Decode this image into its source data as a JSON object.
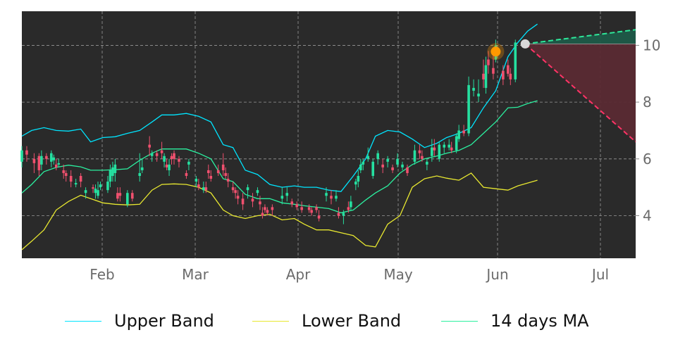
{
  "chart_data": {
    "type": "candlestick",
    "x_ticks": [
      "Feb",
      "Mar",
      "Apr",
      "May",
      "Jun",
      "Jul"
    ],
    "y_ticks": [
      4,
      6,
      8,
      10
    ],
    "ylim": [
      2.5,
      11.2
    ],
    "grid": true,
    "legend_position": "bottom",
    "background": "#2a2a2a",
    "colors": {
      "up": "#25e0a0",
      "down": "#f0506e",
      "upper_band": "#00e5ff",
      "lower_band": "#e8e830",
      "ma": "#2bf0a0",
      "marker": "#ff9900",
      "marker_last": "#d8d8d8",
      "forecast_up": "#2ee89a",
      "forecast_down": "#ff3366"
    },
    "series": [
      {
        "name": "Upper Band",
        "points": [
          [
            0,
            6.8
          ],
          [
            4,
            7.0
          ],
          [
            9,
            7.1
          ],
          [
            14,
            7.0
          ],
          [
            19,
            6.98
          ],
          [
            24,
            7.05
          ],
          [
            28,
            6.6
          ],
          [
            33,
            6.75
          ],
          [
            38,
            6.78
          ],
          [
            43,
            6.9
          ],
          [
            48,
            7.0
          ],
          [
            53,
            7.3
          ],
          [
            57,
            7.55
          ],
          [
            62,
            7.55
          ],
          [
            67,
            7.6
          ],
          [
            72,
            7.5
          ],
          [
            77,
            7.3
          ],
          [
            82,
            6.5
          ],
          [
            86,
            6.4
          ],
          [
            91,
            5.6
          ],
          [
            96,
            5.45
          ],
          [
            101,
            5.1
          ],
          [
            106,
            5.0
          ],
          [
            111,
            5.05
          ],
          [
            115,
            5.0
          ],
          [
            120,
            5.0
          ],
          [
            125,
            4.9
          ],
          [
            130,
            4.85
          ],
          [
            135,
            5.4
          ],
          [
            140,
            6.0
          ],
          [
            144,
            6.8
          ],
          [
            149,
            7.0
          ],
          [
            154,
            6.95
          ],
          [
            159,
            6.7
          ],
          [
            164,
            6.4
          ],
          [
            169,
            6.55
          ],
          [
            173,
            6.75
          ],
          [
            178,
            6.9
          ],
          [
            183,
            7.1
          ],
          [
            188,
            7.8
          ],
          [
            193,
            8.4
          ],
          [
            198,
            9.6
          ],
          [
            202,
            10.1
          ],
          [
            206,
            10.5
          ],
          [
            210,
            10.75
          ]
        ]
      },
      {
        "name": "Lower Band",
        "points": [
          [
            0,
            2.8
          ],
          [
            4,
            3.1
          ],
          [
            9,
            3.5
          ],
          [
            14,
            4.2
          ],
          [
            19,
            4.5
          ],
          [
            24,
            4.72
          ],
          [
            28,
            4.6
          ],
          [
            33,
            4.45
          ],
          [
            38,
            4.4
          ],
          [
            43,
            4.38
          ],
          [
            48,
            4.4
          ],
          [
            53,
            4.9
          ],
          [
            57,
            5.1
          ],
          [
            62,
            5.12
          ],
          [
            67,
            5.1
          ],
          [
            72,
            5.0
          ],
          [
            77,
            4.8
          ],
          [
            82,
            4.2
          ],
          [
            86,
            4.0
          ],
          [
            91,
            3.9
          ],
          [
            96,
            4.0
          ],
          [
            101,
            4.05
          ],
          [
            106,
            3.85
          ],
          [
            111,
            3.9
          ],
          [
            115,
            3.7
          ],
          [
            120,
            3.5
          ],
          [
            125,
            3.5
          ],
          [
            130,
            3.4
          ],
          [
            135,
            3.3
          ],
          [
            140,
            2.95
          ],
          [
            144,
            2.9
          ],
          [
            149,
            3.7
          ],
          [
            154,
            4.0
          ],
          [
            159,
            5.0
          ],
          [
            164,
            5.3
          ],
          [
            169,
            5.4
          ],
          [
            173,
            5.32
          ],
          [
            178,
            5.25
          ],
          [
            183,
            5.5
          ],
          [
            188,
            5.0
          ],
          [
            193,
            4.95
          ],
          [
            198,
            4.9
          ],
          [
            202,
            5.05
          ],
          [
            206,
            5.15
          ],
          [
            210,
            5.25
          ]
        ]
      },
      {
        "name": "14 days MA",
        "points": [
          [
            0,
            4.8
          ],
          [
            4,
            5.1
          ],
          [
            9,
            5.55
          ],
          [
            14,
            5.7
          ],
          [
            19,
            5.78
          ],
          [
            24,
            5.72
          ],
          [
            28,
            5.6
          ],
          [
            33,
            5.6
          ],
          [
            38,
            5.62
          ],
          [
            43,
            5.65
          ],
          [
            48,
            5.95
          ],
          [
            53,
            6.2
          ],
          [
            57,
            6.35
          ],
          [
            62,
            6.35
          ],
          [
            67,
            6.35
          ],
          [
            72,
            6.2
          ],
          [
            77,
            6.0
          ],
          [
            82,
            5.3
          ],
          [
            86,
            5.2
          ],
          [
            91,
            4.75
          ],
          [
            96,
            4.6
          ],
          [
            101,
            4.6
          ],
          [
            106,
            4.45
          ],
          [
            111,
            4.4
          ],
          [
            115,
            4.35
          ],
          [
            120,
            4.3
          ],
          [
            125,
            4.25
          ],
          [
            130,
            4.1
          ],
          [
            135,
            4.2
          ],
          [
            140,
            4.55
          ],
          [
            144,
            4.8
          ],
          [
            149,
            5.05
          ],
          [
            154,
            5.5
          ],
          [
            159,
            5.8
          ],
          [
            164,
            6.0
          ],
          [
            169,
            6.1
          ],
          [
            173,
            6.2
          ],
          [
            178,
            6.3
          ],
          [
            183,
            6.5
          ],
          [
            188,
            6.9
          ],
          [
            193,
            7.3
          ],
          [
            198,
            7.8
          ],
          [
            202,
            7.82
          ],
          [
            206,
            7.95
          ],
          [
            210,
            8.05
          ]
        ]
      }
    ],
    "candles": [
      [
        0,
        5.9,
        6.3,
        6.45,
        5.7
      ],
      [
        2,
        6.3,
        6.15,
        6.45,
        5.9
      ],
      [
        5,
        6.0,
        5.85,
        6.2,
        5.5
      ],
      [
        7,
        6.1,
        5.6,
        6.2,
        5.4
      ],
      [
        8,
        5.8,
        6.1,
        6.3,
        5.6
      ],
      [
        10,
        6.1,
        6.0,
        6.2,
        5.8
      ],
      [
        12,
        5.9,
        6.2,
        6.3,
        5.7
      ],
      [
        13,
        5.95,
        6.05,
        6.15,
        5.8
      ],
      [
        14,
        5.8,
        5.7,
        6.0,
        5.6
      ],
      [
        15,
        5.8,
        5.85,
        6.0,
        5.7
      ],
      [
        17,
        5.6,
        5.5,
        5.8,
        5.3
      ],
      [
        18,
        5.5,
        5.4,
        5.6,
        5.2
      ],
      [
        20,
        5.4,
        5.2,
        5.6,
        5.0
      ],
      [
        22,
        5.1,
        5.15,
        5.3,
        5.0
      ],
      [
        24,
        5.4,
        5.2,
        5.5,
        5.0
      ],
      [
        26,
        4.8,
        4.9,
        5.0,
        4.6
      ],
      [
        29,
        5.0,
        4.95,
        5.1,
        4.8
      ],
      [
        30,
        4.8,
        4.95,
        5.1,
        4.6
      ],
      [
        31,
        4.7,
        4.9,
        5.2,
        4.6
      ],
      [
        32,
        5.0,
        5.1,
        5.2,
        4.9
      ],
      [
        35,
        4.9,
        5.2,
        5.4,
        4.8
      ],
      [
        36,
        5.2,
        5.6,
        5.8,
        5.0
      ],
      [
        37,
        5.4,
        5.7,
        5.9,
        5.2
      ],
      [
        38,
        5.5,
        5.8,
        6.0,
        5.2
      ],
      [
        39,
        4.8,
        4.6,
        5.0,
        4.5
      ],
      [
        40,
        4.8,
        4.7,
        5.0,
        4.5
      ],
      [
        43,
        4.4,
        4.8,
        4.9,
        4.3
      ],
      [
        45,
        4.8,
        4.6,
        4.9,
        4.5
      ],
      [
        48,
        5.4,
        5.5,
        6.2,
        5.2
      ],
      [
        49,
        5.6,
        5.7,
        6.0,
        5.5
      ],
      [
        52,
        6.5,
        6.4,
        6.8,
        6.1
      ],
      [
        53,
        6.1,
        6.2,
        6.3,
        5.9
      ],
      [
        55,
        6.2,
        6.1,
        6.3,
        5.9
      ],
      [
        57,
        6.3,
        6.2,
        6.6,
        6.0
      ],
      [
        58,
        5.9,
        6.1,
        6.2,
        5.7
      ],
      [
        59,
        5.8,
        5.7,
        6.0,
        5.6
      ],
      [
        60,
        5.6,
        5.8,
        6.0,
        5.4
      ],
      [
        61,
        6.1,
        6.0,
        6.2,
        5.8
      ],
      [
        62,
        6.2,
        6.0,
        6.3,
        5.8
      ],
      [
        64,
        6.0,
        5.9,
        6.1,
        5.7
      ],
      [
        67,
        5.5,
        5.4,
        5.6,
        5.3
      ],
      [
        68,
        5.8,
        5.9,
        6.0,
        5.6
      ],
      [
        71,
        5.2,
        5.3,
        5.4,
        5.0
      ],
      [
        72,
        5.1,
        5.0,
        5.3,
        4.9
      ],
      [
        74,
        4.9,
        5.0,
        5.2,
        4.8
      ],
      [
        75,
        5.0,
        4.9,
        5.2,
        4.8
      ],
      [
        76,
        5.6,
        5.5,
        5.8,
        5.3
      ],
      [
        77,
        5.4,
        5.3,
        5.6,
        5.2
      ],
      [
        80,
        5.6,
        5.5,
        5.8,
        5.4
      ],
      [
        82,
        5.8,
        5.6,
        6.2,
        5.4
      ],
      [
        83,
        5.5,
        5.4,
        5.7,
        5.3
      ],
      [
        84,
        5.3,
        5.2,
        5.5,
        5.0
      ],
      [
        86,
        5.0,
        4.9,
        5.2,
        4.8
      ],
      [
        87,
        4.9,
        4.8,
        5.0,
        4.6
      ],
      [
        88,
        4.7,
        4.6,
        4.9,
        4.4
      ],
      [
        90,
        4.6,
        4.4,
        4.8,
        4.2
      ],
      [
        92,
        4.9,
        5.0,
        5.1,
        4.6
      ],
      [
        94,
        4.6,
        4.5,
        4.8,
        4.3
      ],
      [
        96,
        4.8,
        4.9,
        5.0,
        4.7
      ],
      [
        97,
        4.5,
        4.4,
        4.7,
        4.2
      ],
      [
        98,
        4.1,
        4.0,
        4.3,
        3.9
      ],
      [
        99,
        4.3,
        4.2,
        4.4,
        4.1
      ],
      [
        100,
        4.2,
        4.1,
        4.3,
        4.0
      ],
      [
        102,
        4.3,
        4.2,
        4.4,
        4.0
      ],
      [
        106,
        4.6,
        4.7,
        5.0,
        4.4
      ],
      [
        108,
        4.7,
        4.8,
        5.0,
        4.5
      ],
      [
        110,
        4.5,
        4.4,
        4.6,
        4.3
      ],
      [
        112,
        4.4,
        4.3,
        4.5,
        4.2
      ],
      [
        114,
        4.3,
        4.2,
        4.5,
        4.1
      ],
      [
        117,
        4.3,
        4.2,
        4.4,
        4.1
      ],
      [
        118,
        4.2,
        4.1,
        4.3,
        4.0
      ],
      [
        120,
        4.3,
        4.2,
        4.4,
        4.1
      ],
      [
        121,
        4.0,
        3.9,
        4.2,
        3.8
      ],
      [
        124,
        4.7,
        4.8,
        5.0,
        4.5
      ],
      [
        126,
        4.7,
        4.6,
        4.9,
        4.4
      ],
      [
        128,
        4.6,
        4.7,
        4.9,
        4.5
      ],
      [
        129,
        4.1,
        4.0,
        4.3,
        3.9
      ],
      [
        131,
        4.0,
        4.1,
        4.2,
        3.7
      ],
      [
        133,
        4.3,
        4.2,
        4.5,
        4.1
      ],
      [
        134,
        4.3,
        4.5,
        4.7,
        4.2
      ],
      [
        136,
        5.1,
        5.2,
        5.3,
        4.9
      ],
      [
        137,
        5.2,
        5.4,
        5.6,
        5.0
      ],
      [
        138,
        5.6,
        5.8,
        6.0,
        5.5
      ],
      [
        139,
        5.8,
        5.9,
        6.0,
        5.6
      ],
      [
        141,
        6.0,
        6.1,
        6.4,
        5.9
      ],
      [
        143,
        5.4,
        5.9,
        6.0,
        5.3
      ],
      [
        145,
        6.0,
        6.2,
        6.3,
        5.8
      ],
      [
        147,
        5.8,
        5.7,
        6.0,
        5.5
      ],
      [
        149,
        5.9,
        6.0,
        6.1,
        5.7
      ],
      [
        151,
        5.7,
        5.6,
        5.8,
        5.5
      ],
      [
        153,
        5.8,
        6.0,
        6.2,
        5.7
      ],
      [
        155,
        5.7,
        5.8,
        5.9,
        5.6
      ],
      [
        157,
        5.7,
        5.5,
        5.8,
        5.4
      ],
      [
        160,
        5.9,
        6.3,
        6.5,
        5.8
      ],
      [
        162,
        6.3,
        6.2,
        6.5,
        6.0
      ],
      [
        163,
        6.1,
        6.0,
        6.3,
        5.9
      ],
      [
        165,
        5.8,
        5.9,
        6.0,
        5.6
      ],
      [
        167,
        6.1,
        6.4,
        6.7,
        5.9
      ],
      [
        168,
        6.4,
        6.3,
        6.7,
        6.1
      ],
      [
        170,
        6.0,
        6.5,
        6.6,
        5.9
      ],
      [
        172,
        6.4,
        6.5,
        6.6,
        6.2
      ],
      [
        174,
        6.4,
        6.5,
        6.7,
        6.3
      ],
      [
        175,
        6.4,
        6.3,
        6.6,
        6.2
      ],
      [
        177,
        6.3,
        6.8,
        6.9,
        6.2
      ],
      [
        178,
        6.7,
        7.0,
        7.2,
        6.6
      ],
      [
        180,
        7.0,
        6.9,
        7.2,
        6.8
      ],
      [
        182,
        6.9,
        8.6,
        8.9,
        6.8
      ],
      [
        184,
        8.4,
        8.5,
        8.8,
        8.2
      ],
      [
        186,
        8.2,
        8.3,
        8.8,
        8.0
      ],
      [
        188,
        9.0,
        8.8,
        9.5,
        8.5
      ],
      [
        189,
        8.5,
        9.3,
        9.6,
        8.3
      ],
      [
        190,
        9.5,
        9.3,
        9.8,
        9.0
      ],
      [
        192,
        9.2,
        9.0,
        9.8,
        8.8
      ],
      [
        193,
        9.5,
        10.0,
        10.2,
        9.4
      ],
      [
        196,
        9.1,
        8.8,
        9.3,
        8.6
      ],
      [
        198,
        9.3,
        9.0,
        9.5,
        8.9
      ],
      [
        199,
        9.0,
        8.8,
        9.2,
        8.6
      ],
      [
        201,
        8.8,
        10.1,
        10.2,
        8.7
      ]
    ],
    "marker_point": [
      193,
      9.78
    ],
    "forecast": {
      "start": [
        205,
        10.05
      ],
      "upper_end": [
        250,
        10.55
      ],
      "lower_end": [
        250,
        6.6
      ]
    }
  }
}
